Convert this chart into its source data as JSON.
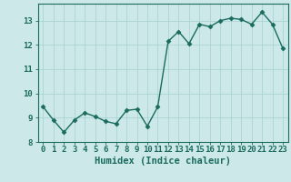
{
  "x": [
    0,
    1,
    2,
    3,
    4,
    5,
    6,
    7,
    8,
    9,
    10,
    11,
    12,
    13,
    14,
    15,
    16,
    17,
    18,
    19,
    20,
    21,
    22,
    23
  ],
  "y": [
    9.45,
    8.9,
    8.4,
    8.9,
    9.2,
    9.05,
    8.85,
    8.75,
    9.3,
    9.35,
    8.65,
    9.45,
    12.15,
    12.55,
    12.05,
    12.85,
    12.75,
    13.0,
    13.1,
    13.05,
    12.85,
    13.35,
    12.85,
    11.85
  ],
  "line_color": "#1a6b5e",
  "marker": "D",
  "marker_size": 2.5,
  "bg_color": "#cce8e8",
  "grid_color": "#aad4d4",
  "xlabel": "Humidex (Indice chaleur)",
  "xlim": [
    -0.5,
    23.5
  ],
  "ylim": [
    8,
    13.7
  ],
  "yticks": [
    8,
    9,
    10,
    11,
    12,
    13
  ],
  "xticks": [
    0,
    1,
    2,
    3,
    4,
    5,
    6,
    7,
    8,
    9,
    10,
    11,
    12,
    13,
    14,
    15,
    16,
    17,
    18,
    19,
    20,
    21,
    22,
    23
  ],
  "xlabel_fontsize": 7.5,
  "tick_fontsize": 6.5,
  "axis_color": "#1a6b5e",
  "spine_color": "#1a6b5e",
  "line_width": 1.0
}
